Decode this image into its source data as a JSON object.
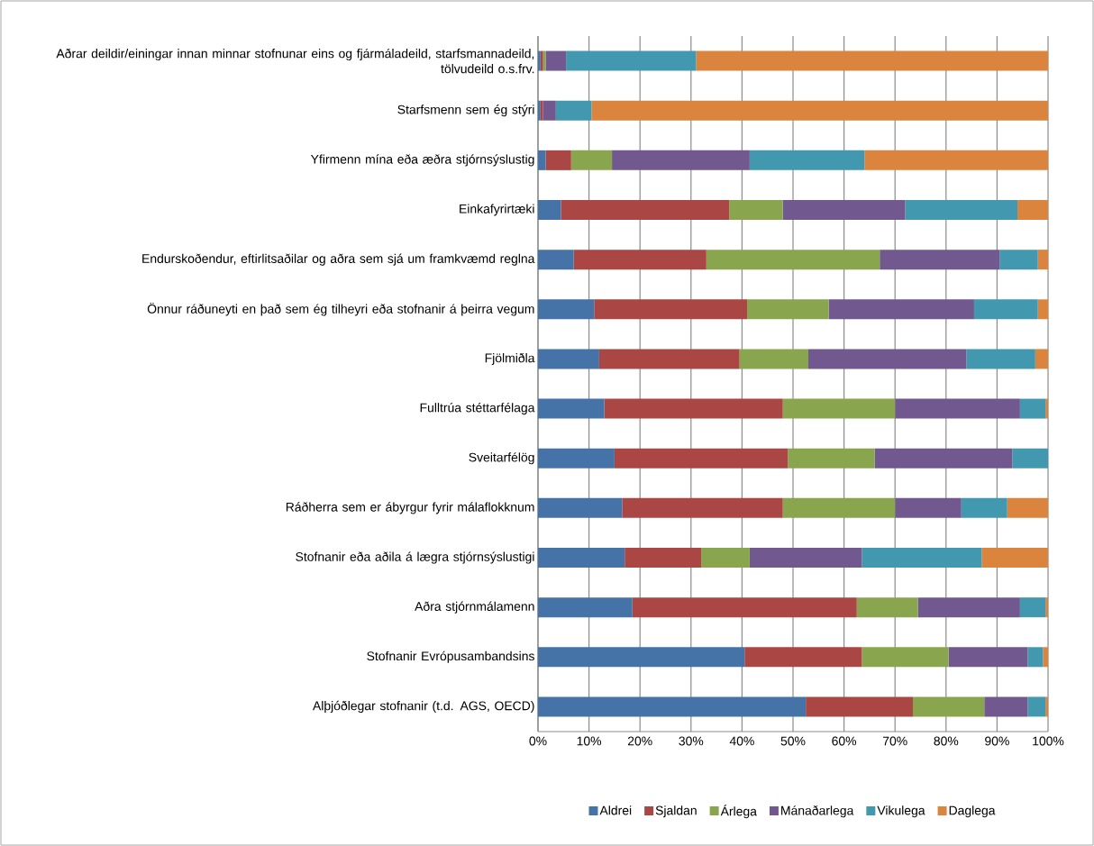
{
  "chart_data": {
    "type": "bar",
    "orientation": "horizontal",
    "stacked": true,
    "categories": [
      "Aðrar deildir/einingar innan minnar stofnunar eins og fjármáladeild, starfsmannadeild, tölvudeild o.s.frv.",
      "Starfsmenn sem ég stýri",
      "Yfirmenn mína eða æðra stjórnsýslustig",
      "Einkafyrirtæki",
      "Endurskoðendur, eftirlitsaðilar og aðra sem sjá um framkvæmd reglna",
      "Önnur ráðuneyti en það sem ég tilheyri eða stofnanir á þeirra vegum",
      "Fjölmiðla",
      "Fulltrúa stéttarfélaga",
      "Sveitarfélög",
      "Ráðherra sem er ábyrgur fyrir málaflokknum",
      "Stofnanir eða aðila á lægra stjórnsýslustigi",
      "Aðra stjórnmálamenn",
      "Stofnanir Evrópusambandsins",
      "Alþjóðlegar stofnanir (t.d. AGS, OECD)"
    ],
    "series": [
      {
        "name": "Aldrei",
        "color": "#4572a7",
        "values": [
          0.5,
          0.5,
          1.5,
          4.5,
          7,
          11,
          12,
          13,
          15,
          16.5,
          17,
          18.5,
          40.5,
          52.5
        ]
      },
      {
        "name": "Sjaldan",
        "color": "#aa4643",
        "values": [
          0.5,
          0.5,
          5,
          33,
          26,
          30,
          27.5,
          35,
          34,
          31.5,
          15,
          44,
          23,
          21
        ]
      },
      {
        "name": "Árlega",
        "color": "#89a54e",
        "values": [
          0.5,
          0,
          8,
          10.5,
          34,
          16,
          13.5,
          22,
          17,
          22,
          9.5,
          12,
          17,
          14
        ]
      },
      {
        "name": "Mánaðarlega",
        "color": "#71588f",
        "values": [
          4,
          2.5,
          27,
          24,
          23.5,
          28.5,
          31,
          24.5,
          27,
          13,
          22,
          20,
          15.5,
          8.5
        ]
      },
      {
        "name": "Vikulega",
        "color": "#4198af",
        "values": [
          25.5,
          7,
          22.5,
          22,
          7.5,
          12.5,
          13.5,
          5,
          7,
          9,
          23.5,
          5,
          3,
          3.5
        ]
      },
      {
        "name": "Daglega",
        "color": "#db843d",
        "values": [
          69,
          89.5,
          36,
          6,
          2,
          2,
          2.5,
          0.5,
          0,
          8,
          13,
          0.5,
          1,
          0.5
        ]
      }
    ],
    "xlim": [
      0,
      100
    ],
    "xticks": [
      {
        "value": 0,
        "label": "0%"
      },
      {
        "value": 10,
        "label": "10%"
      },
      {
        "value": 20,
        "label": "20%"
      },
      {
        "value": 30,
        "label": "30%"
      },
      {
        "value": 40,
        "label": "40%"
      },
      {
        "value": 50,
        "label": "50%"
      },
      {
        "value": 60,
        "label": "60%"
      },
      {
        "value": 70,
        "label": "70%"
      },
      {
        "value": 80,
        "label": "80%"
      },
      {
        "value": 90,
        "label": "90%"
      },
      {
        "value": 100,
        "label": "100%"
      }
    ],
    "grid": "x",
    "legend": "bottom"
  }
}
